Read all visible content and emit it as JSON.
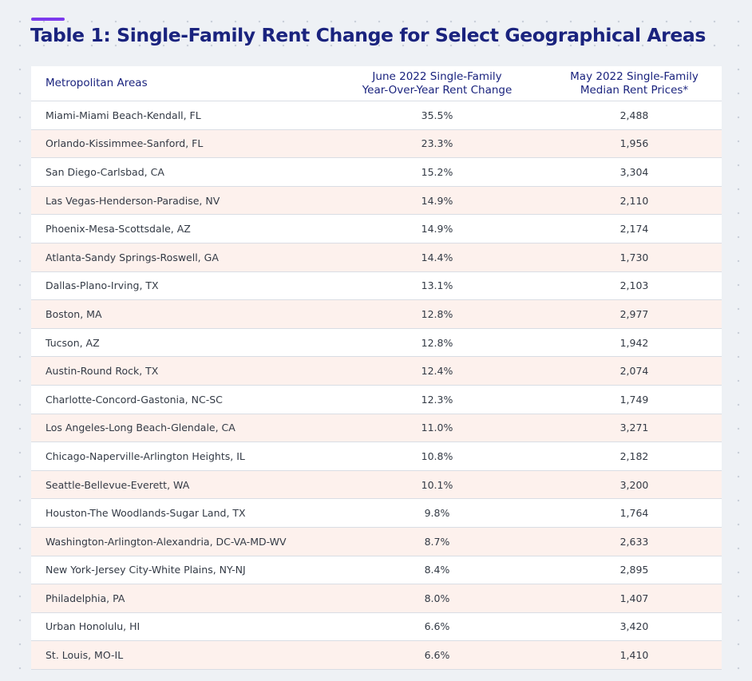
{
  "title": "Table 1: Single-Family Rent Change for Select Geographical Areas",
  "colors": {
    "accent": "#7c3aed",
    "heading": "#1a237e",
    "alt_row": "#fdf1ed"
  },
  "chart_data": {
    "type": "table",
    "title": "Table 1: Single-Family Rent Change for Select Geographical Areas",
    "columns": [
      "Metropolitan Areas",
      "June 2022 Single-Family Year-Over-Year Rent Change",
      "May 2022 Single-Family Median Rent Prices*"
    ],
    "rows": [
      [
        "Miami-Miami Beach-Kendall, FL",
        "35.5%",
        "2,488"
      ],
      [
        "Orlando-Kissimmee-Sanford, FL",
        "23.3%",
        "1,956"
      ],
      [
        "San Diego-Carlsbad, CA",
        "15.2%",
        "3,304"
      ],
      [
        "Las Vegas-Henderson-Paradise, NV",
        "14.9%",
        "2,110"
      ],
      [
        "Phoenix-Mesa-Scottsdale, AZ",
        "14.9%",
        "2,174"
      ],
      [
        "Atlanta-Sandy Springs-Roswell, GA",
        "14.4%",
        "1,730"
      ],
      [
        "Dallas-Plano-Irving, TX",
        "13.1%",
        "2,103"
      ],
      [
        "Boston, MA",
        "12.8%",
        "2,977"
      ],
      [
        "Tucson, AZ",
        "12.8%",
        "1,942"
      ],
      [
        "Austin-Round Rock, TX",
        "12.4%",
        "2,074"
      ],
      [
        "Charlotte-Concord-Gastonia, NC-SC",
        "12.3%",
        "1,749"
      ],
      [
        "Los Angeles-Long Beach-Glendale, CA",
        "11.0%",
        "3,271"
      ],
      [
        "Chicago-Naperville-Arlington Heights, IL",
        "10.8%",
        "2,182"
      ],
      [
        "Seattle-Bellevue-Everett, WA",
        "10.1%",
        "3,200"
      ],
      [
        "Houston-The Woodlands-Sugar Land, TX",
        "9.8%",
        "1,764"
      ],
      [
        "Washington-Arlington-Alexandria, DC-VA-MD-WV",
        "8.7%",
        "2,633"
      ],
      [
        "New York-Jersey City-White Plains, NY-NJ",
        "8.4%",
        "2,895"
      ],
      [
        "Philadelphia, PA",
        "8.0%",
        "1,407"
      ],
      [
        "Urban Honolulu, HI",
        "6.6%",
        "3,420"
      ],
      [
        "St. Louis, MO-IL",
        "6.6%",
        "1,410"
      ]
    ]
  }
}
